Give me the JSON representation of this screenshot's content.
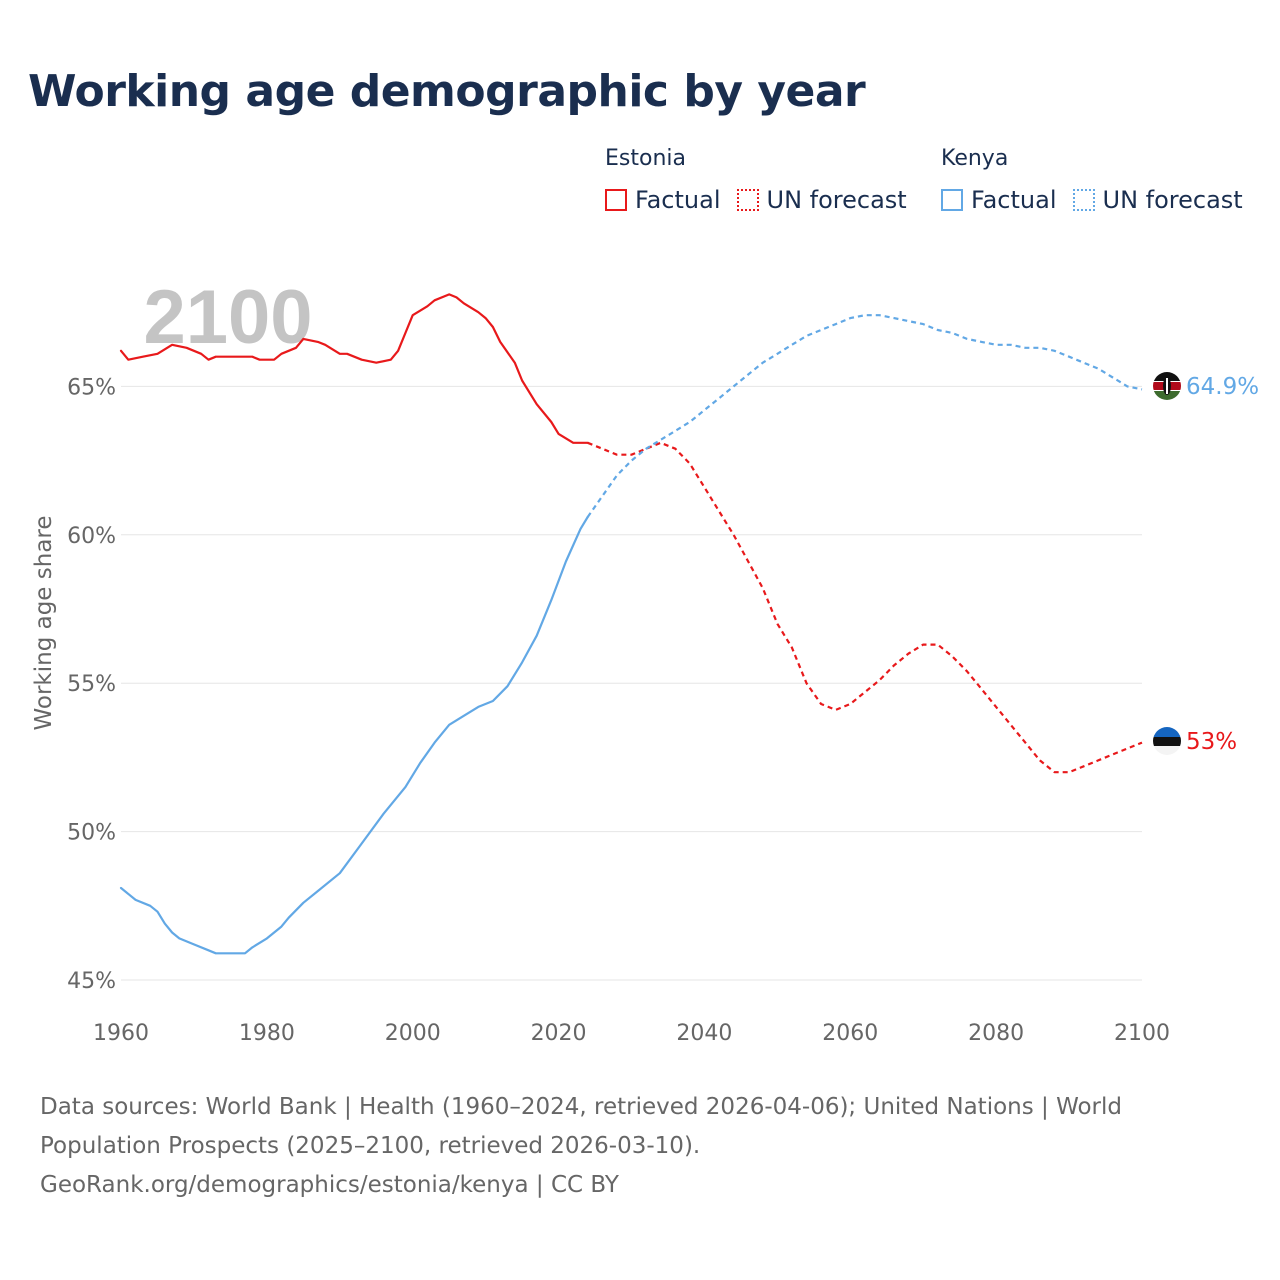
{
  "title": "Working age demographic by year",
  "legend": {
    "groups": [
      {
        "country": "Estonia",
        "color": "#e8191b",
        "items": [
          {
            "label": "Factual",
            "style": "solid"
          },
          {
            "label": "UN forecast",
            "style": "dotted"
          }
        ]
      },
      {
        "country": "Kenya",
        "color": "#62a8e5",
        "items": [
          {
            "label": "Factual",
            "style": "solid"
          },
          {
            "label": "UN forecast",
            "style": "dotted"
          }
        ]
      }
    ]
  },
  "chart_data": {
    "type": "line",
    "title": "Working age demographic by year",
    "xlabel": "",
    "ylabel": "Working age share",
    "xlim": [
      1960,
      2100
    ],
    "ylim": [
      45,
      70
    ],
    "x_ticks": [
      "1960",
      "1980",
      "2000",
      "2020",
      "2040",
      "2060",
      "2080",
      "2100"
    ],
    "y_ticks": [
      {
        "value": 45,
        "label": "45%"
      },
      {
        "value": 50,
        "label": "50%"
      },
      {
        "value": 55,
        "label": "55%"
      },
      {
        "value": 60,
        "label": "60%"
      },
      {
        "value": 65,
        "label": "65%"
      }
    ],
    "grid": true,
    "year_watermark": "2100",
    "series": [
      {
        "name": "Estonia",
        "color": "#e8191b",
        "end_label": "53%",
        "flag": "estonia-flag",
        "factual": [
          [
            1960,
            66.2
          ],
          [
            1961,
            65.9
          ],
          [
            1963,
            66.0
          ],
          [
            1965,
            66.1
          ],
          [
            1967,
            66.4
          ],
          [
            1969,
            66.3
          ],
          [
            1971,
            66.1
          ],
          [
            1972,
            65.9
          ],
          [
            1973,
            66.0
          ],
          [
            1975,
            66.0
          ],
          [
            1978,
            66.0
          ],
          [
            1979,
            65.9
          ],
          [
            1981,
            65.9
          ],
          [
            1982,
            66.1
          ],
          [
            1984,
            66.3
          ],
          [
            1985,
            66.6
          ],
          [
            1987,
            66.5
          ],
          [
            1988,
            66.4
          ],
          [
            1990,
            66.1
          ],
          [
            1991,
            66.1
          ],
          [
            1993,
            65.9
          ],
          [
            1995,
            65.8
          ],
          [
            1997,
            65.9
          ],
          [
            1998,
            66.2
          ],
          [
            1999,
            66.8
          ],
          [
            2000,
            67.4
          ],
          [
            2002,
            67.7
          ],
          [
            2003,
            67.9
          ],
          [
            2005,
            68.1
          ],
          [
            2006,
            68.0
          ],
          [
            2007,
            67.8
          ],
          [
            2009,
            67.5
          ],
          [
            2010,
            67.3
          ],
          [
            2011,
            67.0
          ],
          [
            2012,
            66.5
          ],
          [
            2014,
            65.8
          ],
          [
            2015,
            65.2
          ],
          [
            2017,
            64.4
          ],
          [
            2019,
            63.8
          ],
          [
            2020,
            63.4
          ],
          [
            2022,
            63.1
          ],
          [
            2024,
            63.1
          ]
        ],
        "forecast": [
          [
            2024,
            63.1
          ],
          [
            2026,
            62.9
          ],
          [
            2028,
            62.7
          ],
          [
            2030,
            62.7
          ],
          [
            2032,
            62.9
          ],
          [
            2034,
            63.1
          ],
          [
            2036,
            62.9
          ],
          [
            2038,
            62.4
          ],
          [
            2040,
            61.6
          ],
          [
            2042,
            60.8
          ],
          [
            2044,
            60.0
          ],
          [
            2046,
            59.1
          ],
          [
            2048,
            58.2
          ],
          [
            2050,
            57.0
          ],
          [
            2052,
            56.2
          ],
          [
            2054,
            55.0
          ],
          [
            2056,
            54.3
          ],
          [
            2058,
            54.1
          ],
          [
            2060,
            54.3
          ],
          [
            2062,
            54.7
          ],
          [
            2064,
            55.1
          ],
          [
            2066,
            55.6
          ],
          [
            2068,
            56.0
          ],
          [
            2070,
            56.3
          ],
          [
            2072,
            56.3
          ],
          [
            2074,
            55.9
          ],
          [
            2076,
            55.4
          ],
          [
            2078,
            54.8
          ],
          [
            2080,
            54.2
          ],
          [
            2082,
            53.6
          ],
          [
            2084,
            53.0
          ],
          [
            2086,
            52.4
          ],
          [
            2088,
            52.0
          ],
          [
            2090,
            52.0
          ],
          [
            2092,
            52.2
          ],
          [
            2094,
            52.4
          ],
          [
            2096,
            52.6
          ],
          [
            2098,
            52.8
          ],
          [
            2100,
            53.0
          ]
        ]
      },
      {
        "name": "Kenya",
        "color": "#62a8e5",
        "end_label": "64.9%",
        "flag": "kenya-flag",
        "factual": [
          [
            1960,
            48.1
          ],
          [
            1962,
            47.7
          ],
          [
            1964,
            47.5
          ],
          [
            1965,
            47.3
          ],
          [
            1966,
            46.9
          ],
          [
            1967,
            46.6
          ],
          [
            1968,
            46.4
          ],
          [
            1970,
            46.2
          ],
          [
            1972,
            46.0
          ],
          [
            1973,
            45.9
          ],
          [
            1977,
            45.9
          ],
          [
            1978,
            46.1
          ],
          [
            1980,
            46.4
          ],
          [
            1982,
            46.8
          ],
          [
            1983,
            47.1
          ],
          [
            1985,
            47.6
          ],
          [
            1987,
            48.0
          ],
          [
            1990,
            48.6
          ],
          [
            1993,
            49.6
          ],
          [
            1996,
            50.6
          ],
          [
            1999,
            51.5
          ],
          [
            2001,
            52.3
          ],
          [
            2003,
            53.0
          ],
          [
            2005,
            53.6
          ],
          [
            2007,
            53.9
          ],
          [
            2009,
            54.2
          ],
          [
            2011,
            54.4
          ],
          [
            2013,
            54.9
          ],
          [
            2015,
            55.7
          ],
          [
            2017,
            56.6
          ],
          [
            2019,
            57.8
          ],
          [
            2021,
            59.1
          ],
          [
            2023,
            60.2
          ],
          [
            2024,
            60.6
          ]
        ],
        "forecast": [
          [
            2024,
            60.6
          ],
          [
            2026,
            61.3
          ],
          [
            2028,
            62.0
          ],
          [
            2030,
            62.5
          ],
          [
            2032,
            62.9
          ],
          [
            2034,
            63.2
          ],
          [
            2036,
            63.5
          ],
          [
            2038,
            63.8
          ],
          [
            2040,
            64.2
          ],
          [
            2042,
            64.6
          ],
          [
            2044,
            65.0
          ],
          [
            2046,
            65.4
          ],
          [
            2048,
            65.8
          ],
          [
            2050,
            66.1
          ],
          [
            2052,
            66.4
          ],
          [
            2054,
            66.7
          ],
          [
            2056,
            66.9
          ],
          [
            2058,
            67.1
          ],
          [
            2060,
            67.3
          ],
          [
            2062,
            67.4
          ],
          [
            2064,
            67.4
          ],
          [
            2066,
            67.3
          ],
          [
            2068,
            67.2
          ],
          [
            2070,
            67.1
          ],
          [
            2072,
            66.9
          ],
          [
            2074,
            66.8
          ],
          [
            2076,
            66.6
          ],
          [
            2078,
            66.5
          ],
          [
            2080,
            66.4
          ],
          [
            2082,
            66.4
          ],
          [
            2084,
            66.3
          ],
          [
            2086,
            66.3
          ],
          [
            2088,
            66.2
          ],
          [
            2090,
            66.0
          ],
          [
            2092,
            65.8
          ],
          [
            2094,
            65.6
          ],
          [
            2096,
            65.3
          ],
          [
            2098,
            65.0
          ],
          [
            2100,
            64.9
          ]
        ]
      }
    ]
  },
  "source": {
    "line1": "Data sources: World Bank | Health (1960–2024, retrieved 2026-04-06); United Nations | World",
    "line2": "Population Prospects (2025–2100, retrieved 2026-03-10).",
    "line3": "GeoRank.org/demographics/estonia/kenya | CC BY"
  }
}
